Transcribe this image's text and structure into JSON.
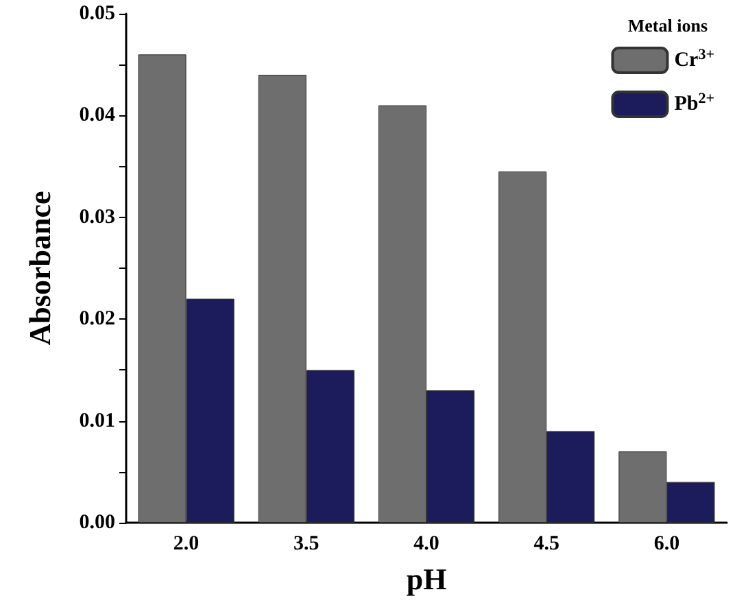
{
  "chart_data": {
    "type": "bar",
    "xlabel": "pH",
    "ylabel": "Absorbance",
    "legend_title": "Metal ions",
    "categories": [
      "2.0",
      "3.5",
      "4.0",
      "4.5",
      "6.0"
    ],
    "series": [
      {
        "name": "Cr$^{3+}$",
        "color": "#6e6e6e",
        "values": [
          0.046,
          0.044,
          0.041,
          0.0345,
          0.007
        ]
      },
      {
        "name": "Pb$^{2+}$",
        "color": "#1c1c5c",
        "values": [
          0.022,
          0.015,
          0.013,
          0.009,
          0.004
        ]
      }
    ],
    "ylim": [
      0,
      0.05
    ],
    "yticks": [
      {
        "value": 0,
        "label": "0.00"
      },
      {
        "value": 0.01,
        "label": "0.01"
      },
      {
        "value": 0.02,
        "label": "0.02"
      },
      {
        "value": 0.03,
        "label": "0.03"
      },
      {
        "value": 0.04,
        "label": "0.04"
      },
      {
        "value": 0.05,
        "label": "0.05"
      }
    ],
    "grid": false,
    "legend": "top right"
  }
}
